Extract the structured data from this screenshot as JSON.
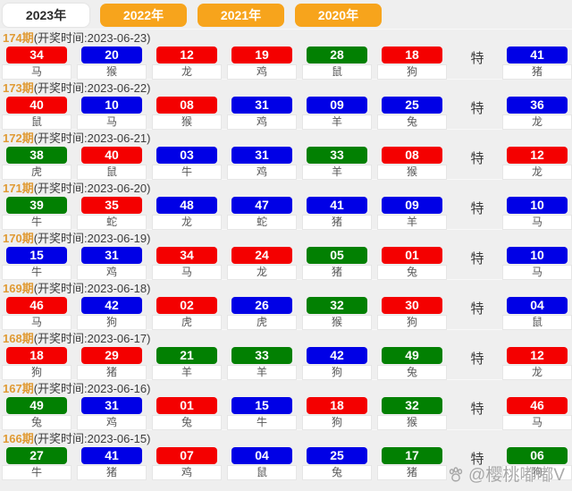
{
  "tabs": [
    {
      "label": "2023年",
      "active": true
    },
    {
      "label": "2022年",
      "active": false
    },
    {
      "label": "2021年",
      "active": false
    },
    {
      "label": "2020年",
      "active": false
    }
  ],
  "special_label": "特",
  "watermark": {
    "icon": "paw-icon",
    "text": "@樱桃嘟嘟V"
  },
  "colors": {
    "ball_red": "#f40000",
    "ball_blue": "#0000e6",
    "ball_green": "#028002",
    "tab_orange": "#f7a41c",
    "period_orange": "#e09a33"
  },
  "draws": [
    {
      "period": "174期",
      "draw_time": "(开奖时间:2023-06-23)",
      "numbers": [
        {
          "num": "34",
          "color": "red",
          "zodiac": "马"
        },
        {
          "num": "20",
          "color": "blue",
          "zodiac": "猴"
        },
        {
          "num": "12",
          "color": "red",
          "zodiac": "龙"
        },
        {
          "num": "19",
          "color": "red",
          "zodiac": "鸡"
        },
        {
          "num": "28",
          "color": "green",
          "zodiac": "鼠"
        },
        {
          "num": "18",
          "color": "red",
          "zodiac": "狗"
        }
      ],
      "special": {
        "num": "41",
        "color": "blue",
        "zodiac": "猪"
      }
    },
    {
      "period": "173期",
      "draw_time": "(开奖时间:2023-06-22)",
      "numbers": [
        {
          "num": "40",
          "color": "red",
          "zodiac": "鼠"
        },
        {
          "num": "10",
          "color": "blue",
          "zodiac": "马"
        },
        {
          "num": "08",
          "color": "red",
          "zodiac": "猴"
        },
        {
          "num": "31",
          "color": "blue",
          "zodiac": "鸡"
        },
        {
          "num": "09",
          "color": "blue",
          "zodiac": "羊"
        },
        {
          "num": "25",
          "color": "blue",
          "zodiac": "兔"
        }
      ],
      "special": {
        "num": "36",
        "color": "blue",
        "zodiac": "龙"
      }
    },
    {
      "period": "172期",
      "draw_time": "(开奖时间:2023-06-21)",
      "numbers": [
        {
          "num": "38",
          "color": "green",
          "zodiac": "虎"
        },
        {
          "num": "40",
          "color": "red",
          "zodiac": "鼠"
        },
        {
          "num": "03",
          "color": "blue",
          "zodiac": "牛"
        },
        {
          "num": "31",
          "color": "blue",
          "zodiac": "鸡"
        },
        {
          "num": "33",
          "color": "green",
          "zodiac": "羊"
        },
        {
          "num": "08",
          "color": "red",
          "zodiac": "猴"
        }
      ],
      "special": {
        "num": "12",
        "color": "red",
        "zodiac": "龙"
      }
    },
    {
      "period": "171期",
      "draw_time": "(开奖时间:2023-06-20)",
      "numbers": [
        {
          "num": "39",
          "color": "green",
          "zodiac": "牛"
        },
        {
          "num": "35",
          "color": "red",
          "zodiac": "蛇"
        },
        {
          "num": "48",
          "color": "blue",
          "zodiac": "龙"
        },
        {
          "num": "47",
          "color": "blue",
          "zodiac": "蛇"
        },
        {
          "num": "41",
          "color": "blue",
          "zodiac": "猪"
        },
        {
          "num": "09",
          "color": "blue",
          "zodiac": "羊"
        }
      ],
      "special": {
        "num": "10",
        "color": "blue",
        "zodiac": "马"
      }
    },
    {
      "period": "170期",
      "draw_time": "(开奖时间:2023-06-19)",
      "numbers": [
        {
          "num": "15",
          "color": "blue",
          "zodiac": "牛"
        },
        {
          "num": "31",
          "color": "blue",
          "zodiac": "鸡"
        },
        {
          "num": "34",
          "color": "red",
          "zodiac": "马"
        },
        {
          "num": "24",
          "color": "red",
          "zodiac": "龙"
        },
        {
          "num": "05",
          "color": "green",
          "zodiac": "猪"
        },
        {
          "num": "01",
          "color": "red",
          "zodiac": "兔"
        }
      ],
      "special": {
        "num": "10",
        "color": "blue",
        "zodiac": "马"
      }
    },
    {
      "period": "169期",
      "draw_time": "(开奖时间:2023-06-18)",
      "numbers": [
        {
          "num": "46",
          "color": "red",
          "zodiac": "马"
        },
        {
          "num": "42",
          "color": "blue",
          "zodiac": "狗"
        },
        {
          "num": "02",
          "color": "red",
          "zodiac": "虎"
        },
        {
          "num": "26",
          "color": "blue",
          "zodiac": "虎"
        },
        {
          "num": "32",
          "color": "green",
          "zodiac": "猴"
        },
        {
          "num": "30",
          "color": "red",
          "zodiac": "狗"
        }
      ],
      "special": {
        "num": "04",
        "color": "blue",
        "zodiac": "鼠"
      }
    },
    {
      "period": "168期",
      "draw_time": "(开奖时间:2023-06-17)",
      "numbers": [
        {
          "num": "18",
          "color": "red",
          "zodiac": "狗"
        },
        {
          "num": "29",
          "color": "red",
          "zodiac": "猪"
        },
        {
          "num": "21",
          "color": "green",
          "zodiac": "羊"
        },
        {
          "num": "33",
          "color": "green",
          "zodiac": "羊"
        },
        {
          "num": "42",
          "color": "blue",
          "zodiac": "狗"
        },
        {
          "num": "49",
          "color": "green",
          "zodiac": "兔"
        }
      ],
      "special": {
        "num": "12",
        "color": "red",
        "zodiac": "龙"
      }
    },
    {
      "period": "167期",
      "draw_time": "(开奖时间:2023-06-16)",
      "numbers": [
        {
          "num": "49",
          "color": "green",
          "zodiac": "兔"
        },
        {
          "num": "31",
          "color": "blue",
          "zodiac": "鸡"
        },
        {
          "num": "01",
          "color": "red",
          "zodiac": "兔"
        },
        {
          "num": "15",
          "color": "blue",
          "zodiac": "牛"
        },
        {
          "num": "18",
          "color": "red",
          "zodiac": "狗"
        },
        {
          "num": "32",
          "color": "green",
          "zodiac": "猴"
        }
      ],
      "special": {
        "num": "46",
        "color": "red",
        "zodiac": "马"
      }
    },
    {
      "period": "166期",
      "draw_time": "(开奖时间:2023-06-15)",
      "numbers": [
        {
          "num": "27",
          "color": "green",
          "zodiac": "牛"
        },
        {
          "num": "41",
          "color": "blue",
          "zodiac": "猪"
        },
        {
          "num": "07",
          "color": "red",
          "zodiac": "鸡"
        },
        {
          "num": "04",
          "color": "blue",
          "zodiac": "鼠"
        },
        {
          "num": "25",
          "color": "blue",
          "zodiac": "兔"
        },
        {
          "num": "17",
          "color": "green",
          "zodiac": "猪"
        }
      ],
      "special": {
        "num": "06",
        "color": "green",
        "zodiac": "狗"
      }
    }
  ]
}
